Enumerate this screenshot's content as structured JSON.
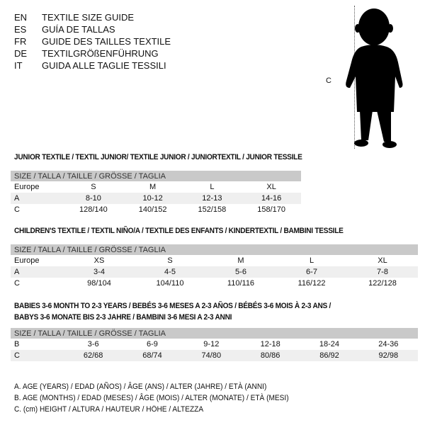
{
  "languages": [
    {
      "code": "EN",
      "title": "TEXTILE SIZE GUIDE"
    },
    {
      "code": "ES",
      "title": "GUÍA DE TALLAS"
    },
    {
      "code": "FR",
      "title": "GUIDE DES TAILLES TEXTILE"
    },
    {
      "code": "DE",
      "title": "TEXTILGRÖßENFÜHRUNG"
    },
    {
      "code": "IT",
      "title": "GUIDA ALLE TAGLIE TESSILI"
    }
  ],
  "figure": {
    "label": "C",
    "icon": "baby-silhouette-icon"
  },
  "size_header": "SIZE / TALLA / TAILLE / GRÖSSE / TAGLIA",
  "junior": {
    "title": "JUNIOR TEXTILE / TEXTIL JUNIOR/ TEXTILE JUNIOR / JUNIORTEXTIL / JUNIOR TESSILE",
    "rows": [
      {
        "label": "Europe",
        "cells": [
          "S",
          "M",
          "L",
          "XL"
        ]
      },
      {
        "label": "A",
        "cells": [
          "8-10",
          "10-12",
          "12-13",
          "14-16"
        ]
      },
      {
        "label": "C",
        "cells": [
          "128/140",
          "140/152",
          "152/158",
          "158/170"
        ]
      }
    ]
  },
  "children": {
    "title": "CHILDREN'S TEXTILE / TEXTIL NIÑO/A / TEXTILE DES ENFANTS / KINDERTEXTIL / BAMBINI TESSILE",
    "rows": [
      {
        "label": "Europe",
        "cells": [
          "XS",
          "S",
          "M",
          "L",
          "XL"
        ]
      },
      {
        "label": "A",
        "cells": [
          "3-4",
          "4-5",
          "5-6",
          "6-7",
          "7-8"
        ]
      },
      {
        "label": "C",
        "cells": [
          "98/104",
          "104/110",
          "110/116",
          "116/122",
          "122/128"
        ]
      }
    ]
  },
  "babies": {
    "title_line1": "BABIES 3-6 MONTH TO 2-3 YEARS / BEBÉS 3-6 MESES A 2-3 AÑOS / BÉBÉS 3-6 MOIS À 2-3 ANS /",
    "title_line2": "BABYS 3-6 MONATE BIS 2-3 JAHRE / BAMBINI 3-6 MESI A 2-3 ANNI",
    "rows": [
      {
        "label": "B",
        "cells": [
          "3-6",
          "6-9",
          "9-12",
          "12-18",
          "18-24",
          "24-36"
        ]
      },
      {
        "label": "C",
        "cells": [
          "62/68",
          "68/74",
          "74/80",
          "80/86",
          "86/92",
          "92/98"
        ]
      }
    ]
  },
  "legend": [
    "A. AGE (YEARS) / EDAD (AÑOS) / ÂGE (ANS) / ALTER (JAHRE) / ETÀ (ANNI)",
    "B. AGE (MONTHS) / EDAD (MESES) / ÂGE (MOIS) / ALTER (MONATE) / ETÀ (MESI)",
    "C. (cm) HEIGHT / ALTURA / HAUTEUR / HÖHE / ALTEZZA"
  ]
}
